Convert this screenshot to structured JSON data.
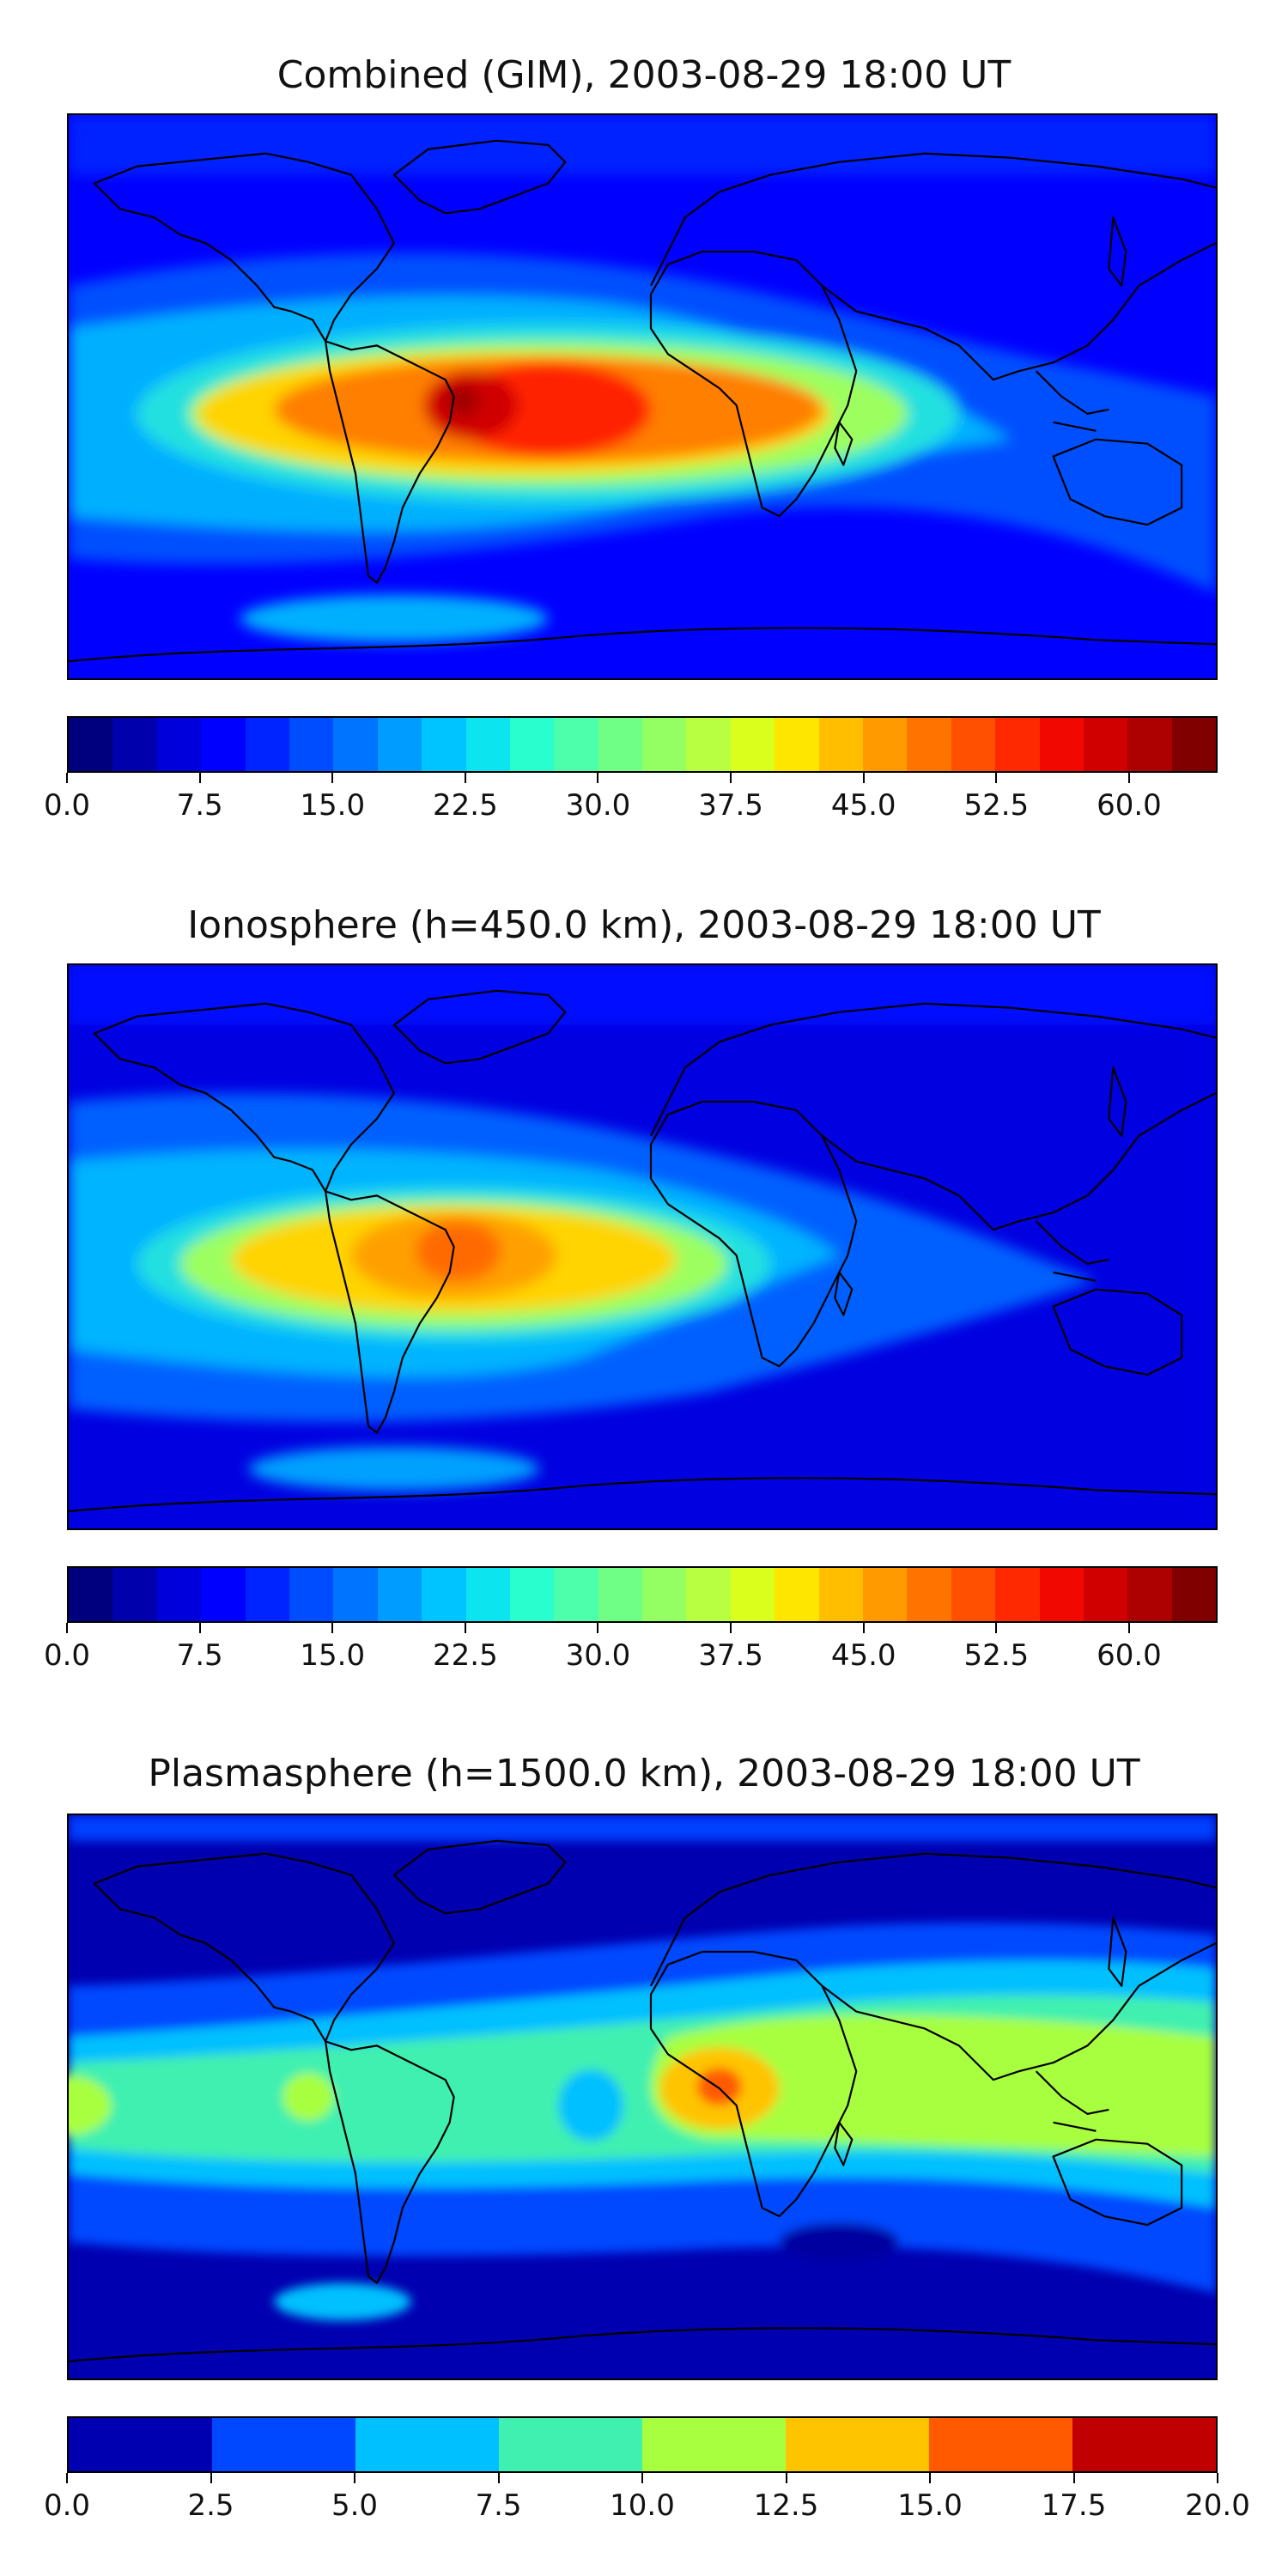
{
  "chart_data": [
    {
      "type": "heatmap",
      "title": "Combined (GIM), 2003-08-29 18:00 UT",
      "colorbar": {
        "levels": 26,
        "tick_labels": [
          "0.0",
          "7.5",
          "15.0",
          "22.5",
          "30.0",
          "37.5",
          "45.0",
          "52.5",
          "60.0"
        ],
        "tick_values": [
          0,
          7.5,
          15,
          22.5,
          30,
          37.5,
          45,
          52.5,
          60
        ],
        "range": [
          0,
          65
        ],
        "colormap": "jet"
      },
      "features": [
        {
          "name": "equatorial-anomaly-americas-atlantic",
          "lon": -55,
          "lat": -5,
          "peak": 62
        },
        {
          "name": "background-high-latitudes",
          "peak": 8
        }
      ],
      "axes": {
        "ticks_shown": false,
        "grid": false
      }
    },
    {
      "type": "heatmap",
      "title": "Ionosphere  (h=450.0 km), 2003-08-29 18:00 UT",
      "colorbar": {
        "levels": 26,
        "tick_labels": [
          "0.0",
          "7.5",
          "15.0",
          "22.5",
          "30.0",
          "37.5",
          "45.0",
          "52.5",
          "60.0"
        ],
        "tick_values": [
          0,
          7.5,
          15,
          22.5,
          30,
          37.5,
          45,
          52.5,
          60
        ],
        "range": [
          0,
          65
        ],
        "colormap": "jet"
      },
      "features": [
        {
          "name": "equatorial-anomaly-south-america",
          "lon": -55,
          "lat": -8,
          "peak": 52
        },
        {
          "name": "background-night-side",
          "peak": 4
        }
      ],
      "axes": {
        "ticks_shown": false,
        "grid": false
      }
    },
    {
      "type": "heatmap",
      "title": "Plasmasphere (h=1500.0 km), 2003-08-29 18:00 UT",
      "colorbar": {
        "levels": 8,
        "tick_labels": [
          "0.0",
          "2.5",
          "5.0",
          "7.5",
          "10.0",
          "12.5",
          "15.0",
          "17.5",
          "20.0"
        ],
        "tick_values": [
          0,
          2.5,
          5,
          7.5,
          10,
          12.5,
          15,
          17.5,
          20
        ],
        "range": [
          0,
          20
        ],
        "colormap": "jet"
      },
      "features": [
        {
          "name": "low-latitude-band",
          "peak": 12
        },
        {
          "name": "maximum-central-africa",
          "lon": 15,
          "lat": 2,
          "peak": 16
        },
        {
          "name": "high-latitudes",
          "peak": 1.5
        }
      ],
      "axes": {
        "ticks_shown": false,
        "grid": false
      }
    }
  ]
}
